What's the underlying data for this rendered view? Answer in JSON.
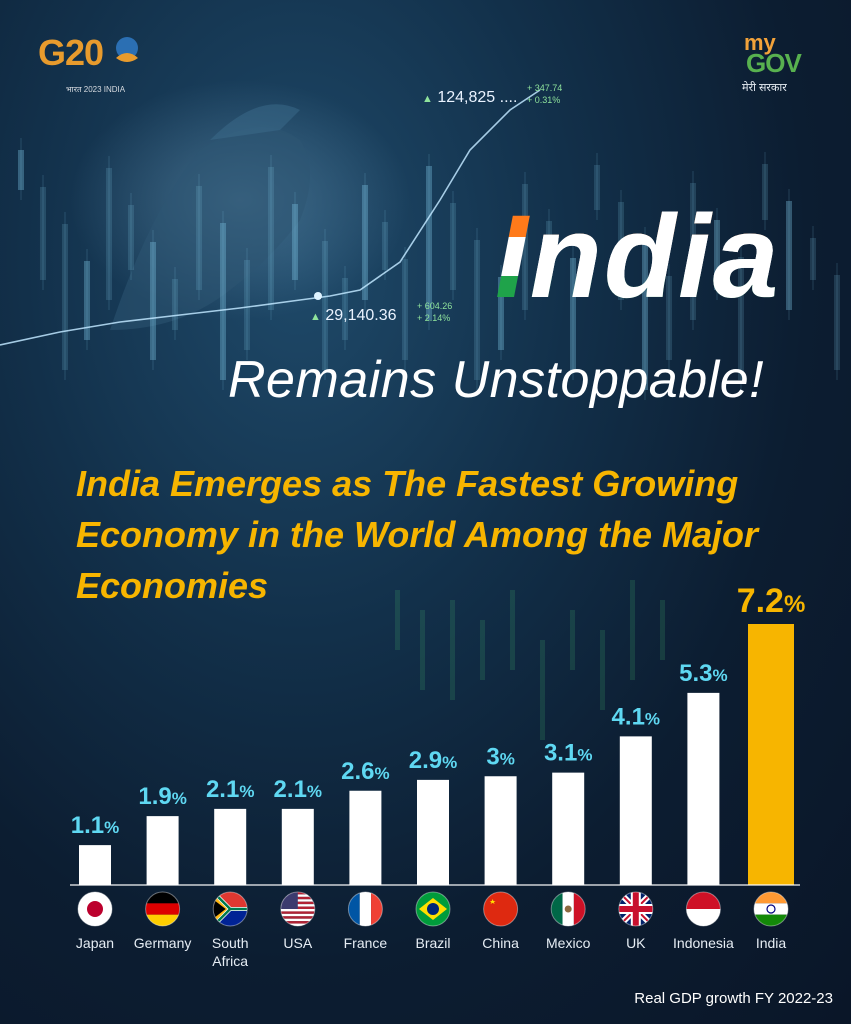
{
  "branding": {
    "g20_logo_text": "G20",
    "g20_subtext": "भारत 2023 INDIA",
    "mygov_my": "my",
    "mygov_gov": "GOV",
    "mygov_subtext": "मेरी सरकार"
  },
  "background_tickers": {
    "top_value": "124,825 ....",
    "top_change": "+ 347.74",
    "top_change_pct": "+ 0.31%",
    "mid_value": "29,140.36",
    "mid_change": "+ 604.26",
    "mid_change_pct": "+ 2.14%"
  },
  "headline": {
    "title_first_letter": "I",
    "title_rest": "ndia",
    "subtitle": "Remains Unstoppable!"
  },
  "chart_data": {
    "type": "bar",
    "title": "India Emerges as The Fastest Growing Economy in the World Among the Major Economies",
    "categories": [
      "Japan",
      "Germany",
      "South Africa",
      "USA",
      "France",
      "Brazil",
      "China",
      "Mexico",
      "UK",
      "Indonesia",
      "India"
    ],
    "values": [
      1.1,
      1.9,
      2.1,
      2.1,
      2.6,
      2.9,
      3,
      3.1,
      4.1,
      5.3,
      7.2
    ],
    "value_labels": [
      "1.1",
      "1.9",
      "2.1",
      "2.1",
      "2.6",
      "2.9",
      "3",
      "3.1",
      "4.1",
      "5.3",
      "7.2"
    ],
    "unit": "%",
    "highlight": "India",
    "bar_color": "#ffffff",
    "highlight_color": "#f7b500",
    "label_color": "#5fd8f2",
    "footnote": "Real GDP growth FY 2022-23"
  }
}
